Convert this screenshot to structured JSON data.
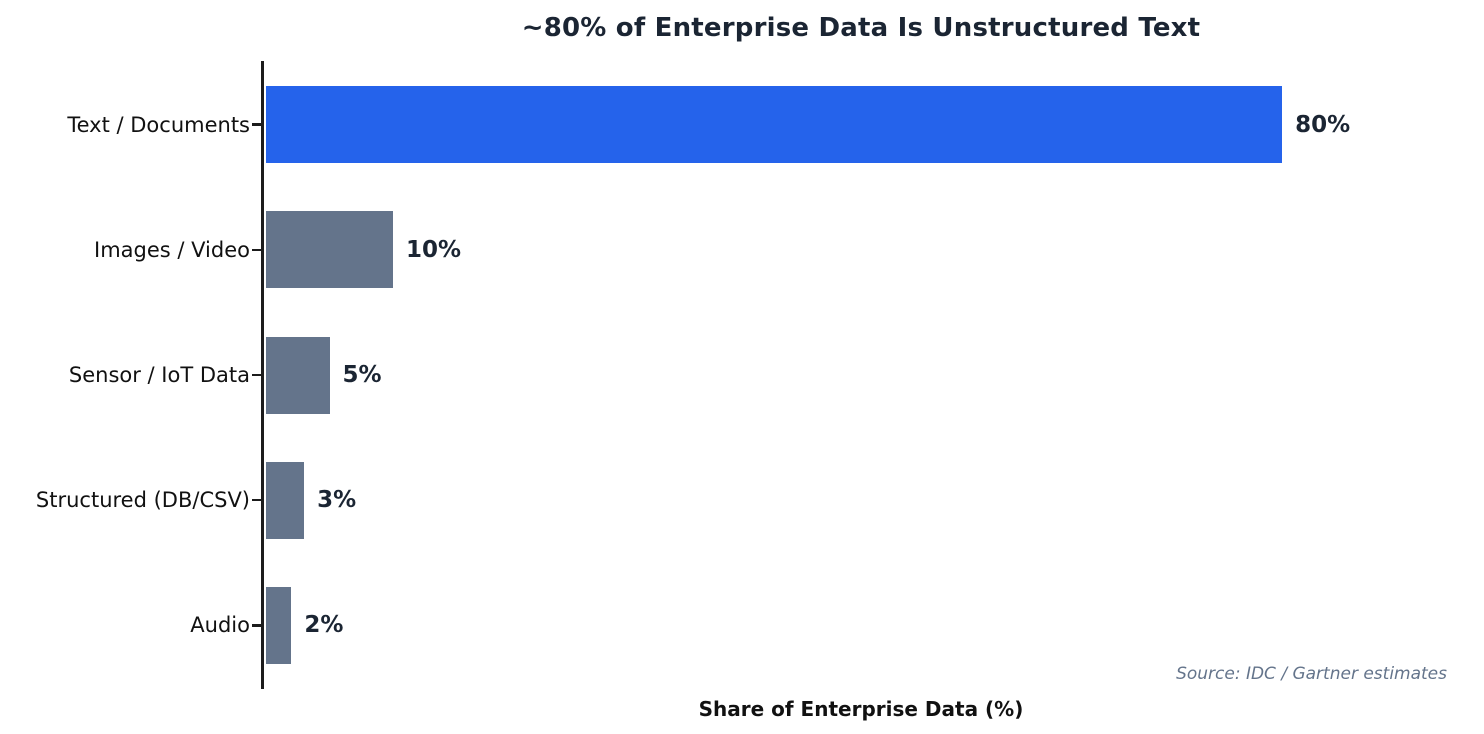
{
  "chart_data": {
    "type": "bar",
    "orientation": "horizontal",
    "title": "~80% of Enterprise Data Is Unstructured Text",
    "categories": [
      "Text / Documents",
      "Images / Video",
      "Sensor / IoT Data",
      "Structured (DB/CSV)",
      "Audio"
    ],
    "values": [
      80,
      10,
      5,
      3,
      2
    ],
    "value_labels": [
      "80%",
      "10%",
      "5%",
      "3%",
      "2%"
    ],
    "bar_colors": [
      "#2563eb",
      "#64748b",
      "#64748b",
      "#64748b",
      "#64748b"
    ],
    "highlight_color": "#2563eb",
    "base_color": "#64748b",
    "title_color": "#1b2533",
    "value_label_color": "#1b2533",
    "axis_color": "#1c1c1c",
    "xlabel": "Share of Enterprise Data (%)",
    "xlim": [
      0,
      94
    ],
    "grid": false,
    "legend": "none",
    "source_note": "Source: IDC / Gartner estimates",
    "source_color": "#64748b"
  }
}
